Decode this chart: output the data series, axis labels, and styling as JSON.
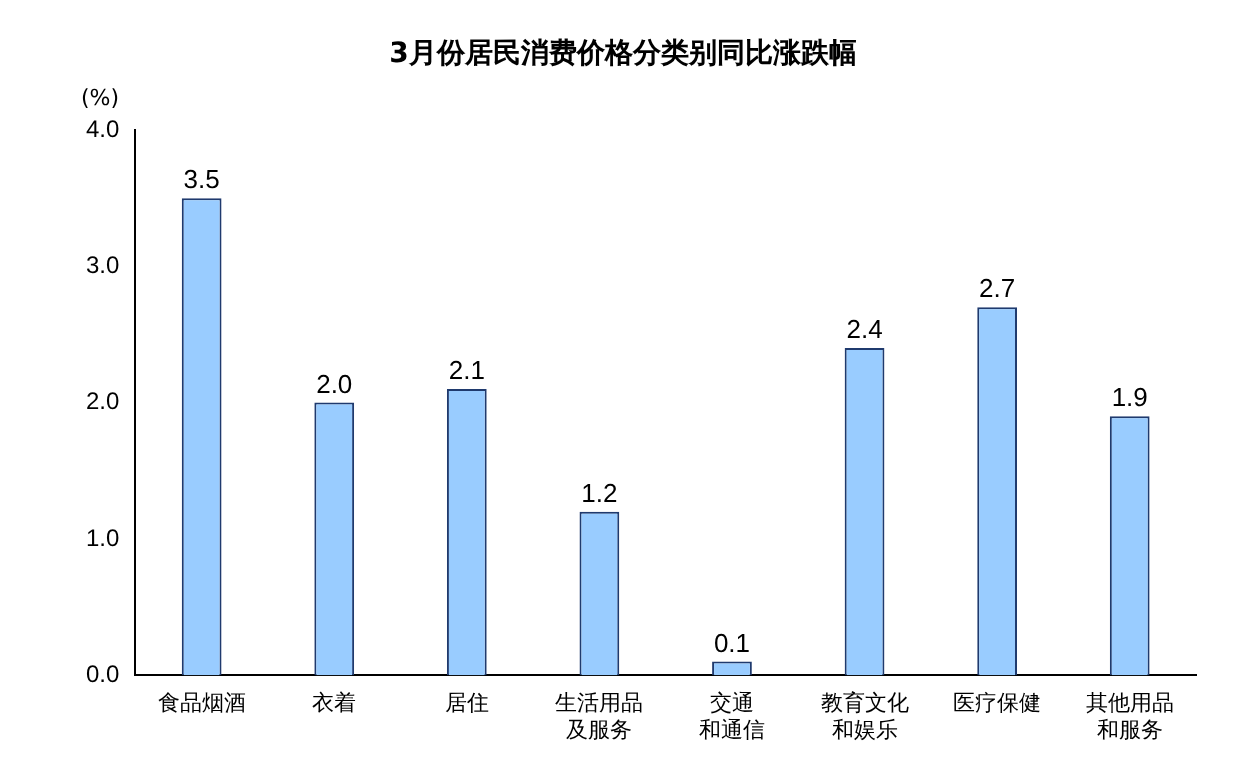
{
  "chart_data": {
    "type": "bar",
    "title": "3月份居民消费价格分类别同比涨跌幅",
    "ylabel": "(%)",
    "categories": [
      "食品烟酒",
      "衣着",
      "居住",
      "生活用品及服务",
      "交通和通信",
      "教育文化和娱乐",
      "医疗保健",
      "其他用品和服务"
    ],
    "values": [
      3.5,
      2.0,
      2.1,
      1.2,
      0.1,
      2.4,
      2.7,
      1.9
    ],
    "color": "#99ccff",
    "value_labels": [
      "3.5",
      "2.0",
      "2.1",
      "1.2",
      "0.1",
      "2.4",
      "2.7",
      "1.9"
    ],
    "ylim": [
      0,
      4
    ],
    "yticks": [
      {
        "value": 0,
        "label": "0.0"
      },
      {
        "value": 1,
        "label": "1.0"
      },
      {
        "value": 2,
        "label": "2.0"
      },
      {
        "value": 3,
        "label": "3.0"
      },
      {
        "value": 4,
        "label": "4.0"
      }
    ],
    "grid": false,
    "legend": false
  }
}
